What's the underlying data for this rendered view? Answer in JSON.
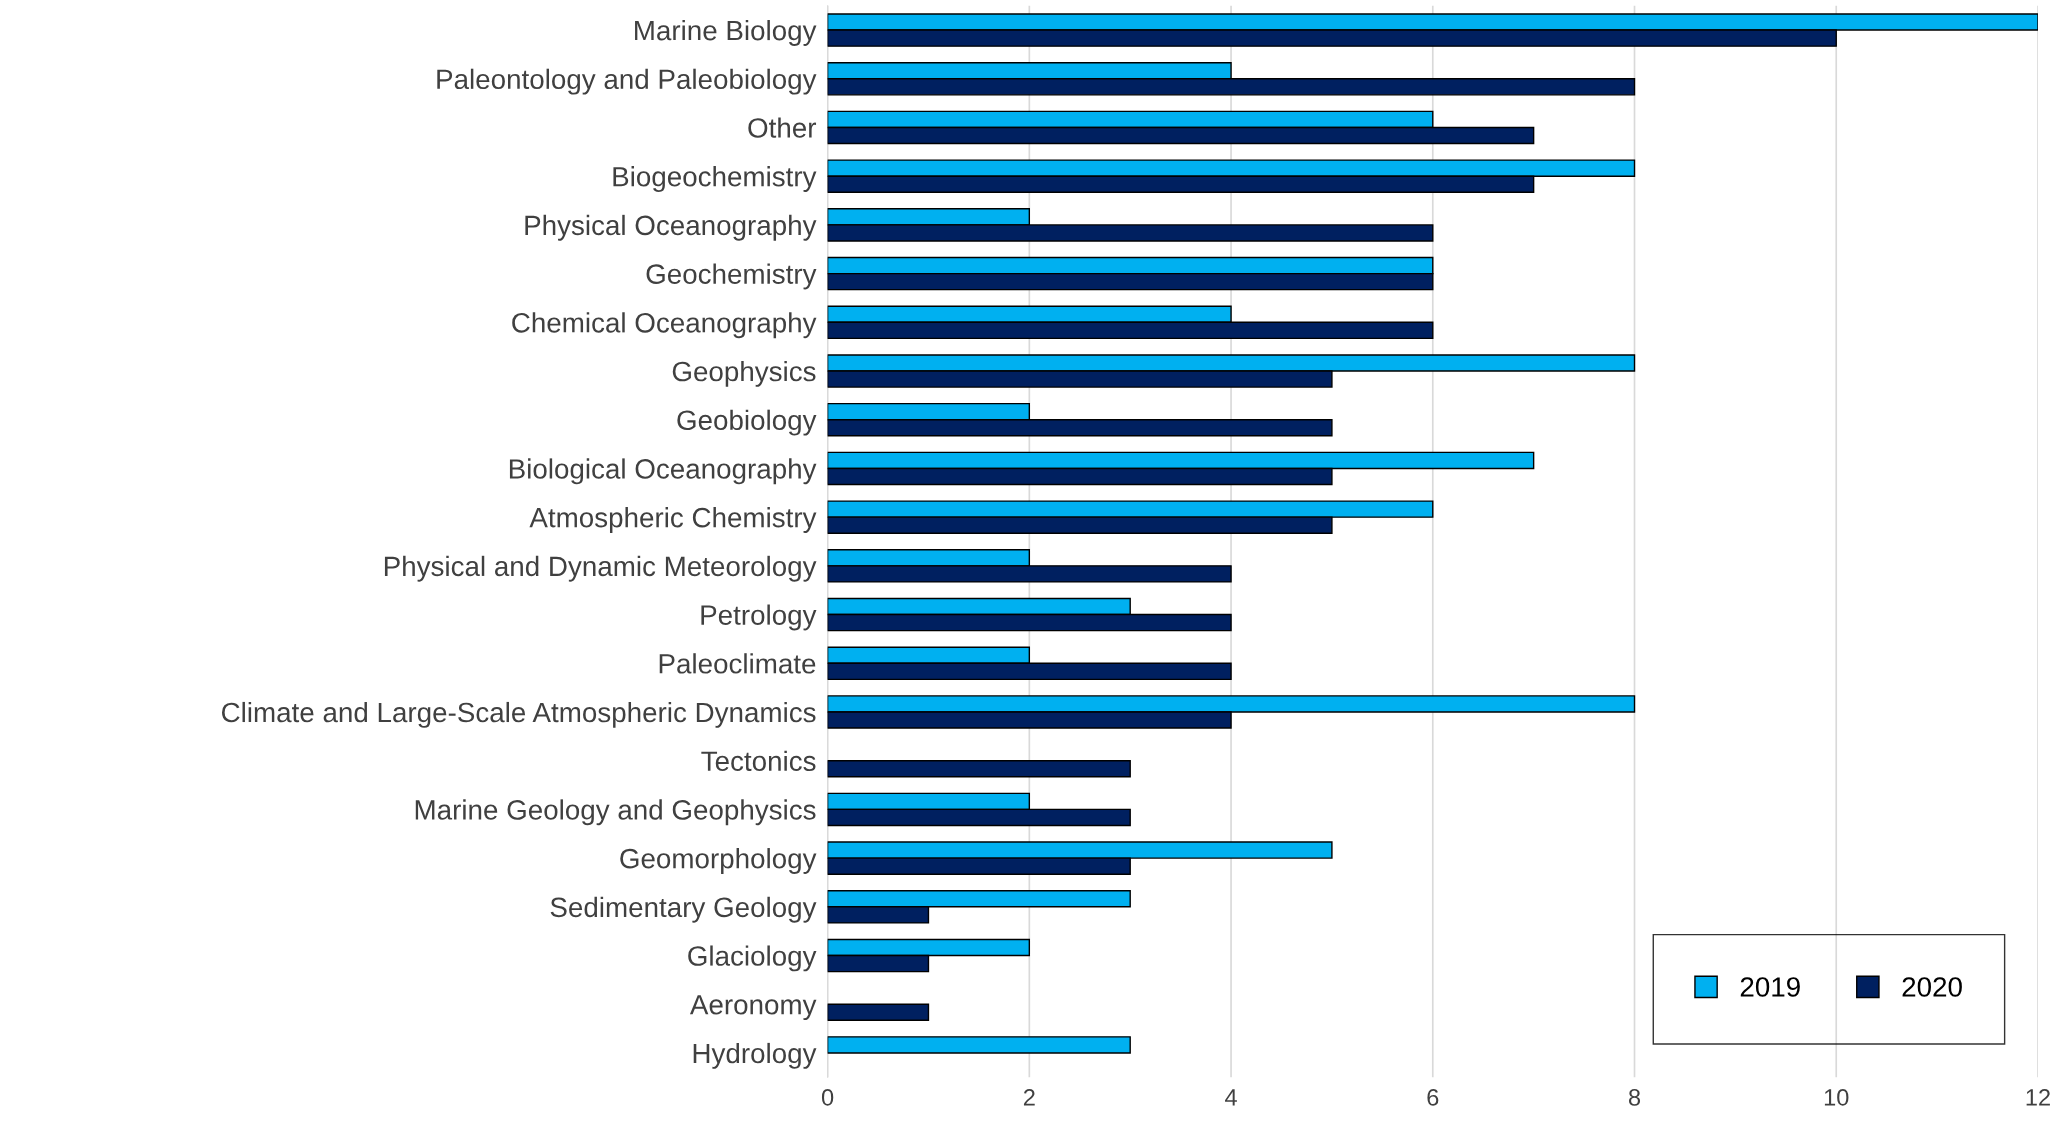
{
  "chart_data": {
    "type": "bar",
    "orientation": "horizontal",
    "categories": [
      "Marine Biology",
      "Paleontology and Paleobiology",
      "Other",
      "Biogeochemistry",
      "Physical Oceanography",
      "Geochemistry",
      "Chemical Oceanography",
      "Geophysics",
      "Geobiology",
      "Biological Oceanography",
      "Atmospheric Chemistry",
      "Physical and Dynamic Meteorology",
      "Petrology",
      "Paleoclimate",
      "Climate and Large-Scale Atmospheric Dynamics",
      "Tectonics",
      "Marine Geology and Geophysics",
      "Geomorphology",
      "Sedimentary Geology",
      "Glaciology",
      "Aeronomy",
      "Hydrology"
    ],
    "series": [
      {
        "name": "2019",
        "color": "#00b0f0",
        "values": [
          12,
          4,
          6,
          8,
          2,
          6,
          4,
          8,
          2,
          7,
          6,
          2,
          3,
          2,
          8,
          null,
          2,
          5,
          3,
          2,
          null,
          3
        ]
      },
      {
        "name": "2020",
        "color": "#002060",
        "values": [
          10,
          8,
          7,
          7,
          6,
          6,
          6,
          5,
          5,
          5,
          5,
          4,
          4,
          4,
          4,
          3,
          3,
          3,
          1,
          1,
          1,
          null
        ]
      }
    ],
    "xlim": [
      0,
      12
    ],
    "xticks": [
      0,
      2,
      4,
      6,
      8,
      10,
      12
    ],
    "grid": "x",
    "legend": "bottom right"
  }
}
